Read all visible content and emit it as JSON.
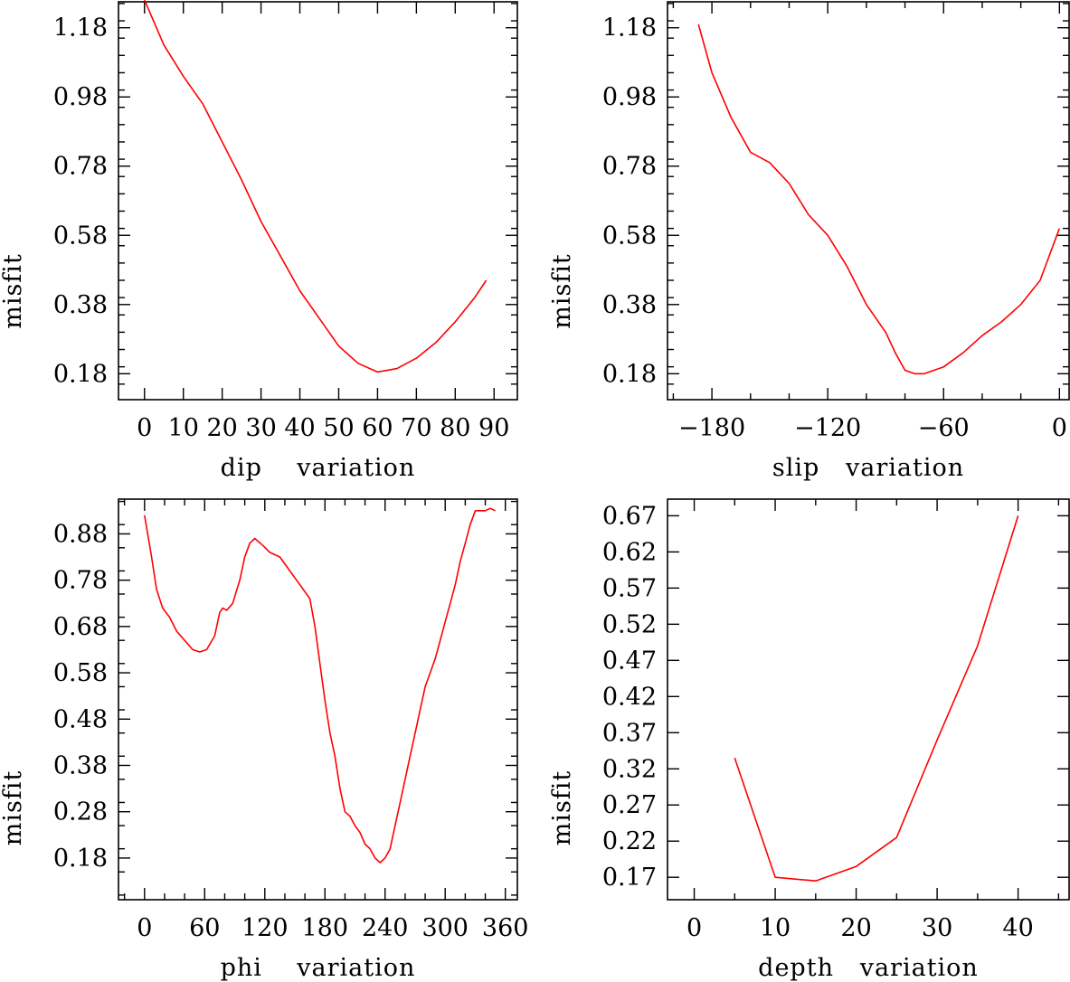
{
  "chart_data": [
    {
      "type": "line",
      "xlabel": "dip    variation",
      "ylabel": "misfit",
      "xlim": [
        -6.7,
        96
      ],
      "ylim": [
        0.105,
        1.255
      ],
      "xticks": [
        0,
        10,
        20,
        30,
        40,
        50,
        60,
        70,
        80,
        90
      ],
      "xtick_labels": [
        "0",
        "10",
        "20",
        "30",
        "40",
        "50",
        "60",
        "70",
        "80",
        "90"
      ],
      "yticks": [
        0.18,
        0.38,
        0.58,
        0.78,
        0.98,
        1.18
      ],
      "ytick_labels": [
        "0.18",
        "0.38",
        "0.58",
        "0.78",
        "0.98",
        "1.18"
      ],
      "yminor": 0.05,
      "series": [
        {
          "name": "misfit",
          "color": "#ff0000",
          "x": [
            0,
            5,
            10,
            15,
            20,
            25,
            30,
            35,
            40,
            45,
            50,
            55,
            60,
            65,
            70,
            75,
            80,
            85,
            88
          ],
          "y": [
            1.26,
            1.13,
            1.04,
            0.96,
            0.85,
            0.74,
            0.62,
            0.52,
            0.42,
            0.34,
            0.26,
            0.21,
            0.185,
            0.195,
            0.225,
            0.27,
            0.33,
            0.4,
            0.45
          ]
        }
      ]
    },
    {
      "type": "line",
      "xlabel": "slip   variation",
      "ylabel": "misfit",
      "xlim": [
        -203,
        5
      ],
      "ylim": [
        0.105,
        1.255
      ],
      "xticks": [
        -180,
        -120,
        -60,
        0
      ],
      "xtick_labels": [
        "−180",
        "−120",
        "−60",
        "0"
      ],
      "xminor": 20,
      "yticks": [
        0.18,
        0.38,
        0.58,
        0.78,
        0.98,
        1.18
      ],
      "ytick_labels": [
        "0.18",
        "0.38",
        "0.58",
        "0.78",
        "0.98",
        "1.18"
      ],
      "yminor": 0.05,
      "series": [
        {
          "name": "misfit",
          "color": "#ff0000",
          "x": [
            -187,
            -180,
            -170,
            -160,
            -150,
            -140,
            -130,
            -120,
            -110,
            -100,
            -90,
            -85,
            -80,
            -75,
            -70,
            -60,
            -50,
            -40,
            -30,
            -20,
            -10,
            0
          ],
          "y": [
            1.19,
            1.05,
            0.92,
            0.82,
            0.79,
            0.73,
            0.64,
            0.58,
            0.49,
            0.38,
            0.3,
            0.24,
            0.19,
            0.18,
            0.18,
            0.2,
            0.24,
            0.29,
            0.33,
            0.38,
            0.45,
            0.6
          ]
        }
      ]
    },
    {
      "type": "line",
      "xlabel": "phi    variation",
      "ylabel": "misfit",
      "xlim": [
        -26,
        372
      ],
      "ylim": [
        0.09,
        0.955
      ],
      "xticks": [
        0,
        60,
        120,
        180,
        240,
        300,
        360
      ],
      "xtick_labels": [
        "0",
        "60",
        "120",
        "180",
        "240",
        "300",
        "360"
      ],
      "xminor": 20,
      "yticks": [
        0.18,
        0.28,
        0.38,
        0.48,
        0.58,
        0.68,
        0.78,
        0.88
      ],
      "ytick_labels": [
        "0.18",
        "0.28",
        "0.38",
        "0.48",
        "0.58",
        "0.68",
        "0.78",
        "0.88"
      ],
      "yminor": 0.05,
      "series": [
        {
          "name": "misfit",
          "color": "#ff0000",
          "x": [
            0,
            7,
            12,
            18,
            25,
            32,
            40,
            48,
            55,
            62,
            70,
            75,
            78,
            82,
            88,
            95,
            100,
            105,
            110,
            118,
            125,
            135,
            145,
            155,
            165,
            170,
            175,
            180,
            185,
            190,
            195,
            200,
            205,
            210,
            215,
            220,
            225,
            230,
            235,
            240,
            245,
            250,
            255,
            260,
            265,
            270,
            275,
            280,
            285,
            290,
            295,
            300,
            305,
            310,
            315,
            320,
            325,
            330,
            335,
            340,
            345,
            350
          ],
          "y": [
            0.92,
            0.83,
            0.76,
            0.72,
            0.7,
            0.67,
            0.65,
            0.63,
            0.625,
            0.63,
            0.66,
            0.71,
            0.72,
            0.715,
            0.73,
            0.78,
            0.83,
            0.86,
            0.87,
            0.855,
            0.84,
            0.83,
            0.8,
            0.77,
            0.74,
            0.68,
            0.6,
            0.52,
            0.45,
            0.4,
            0.33,
            0.28,
            0.27,
            0.25,
            0.235,
            0.21,
            0.2,
            0.18,
            0.17,
            0.18,
            0.2,
            0.25,
            0.3,
            0.35,
            0.4,
            0.45,
            0.5,
            0.55,
            0.58,
            0.61,
            0.65,
            0.69,
            0.73,
            0.77,
            0.82,
            0.86,
            0.9,
            0.93,
            0.93,
            0.93,
            0.935,
            0.93
          ]
        }
      ]
    },
    {
      "type": "line",
      "xlabel": "depth   variation",
      "ylabel": "misfit",
      "xlim": [
        -3.3,
        46.3
      ],
      "ylim": [
        0.139,
        0.693
      ],
      "xticks": [
        0,
        10,
        20,
        30,
        40
      ],
      "xtick_labels": [
        "0",
        "10",
        "20",
        "30",
        "40"
      ],
      "xminor": 5,
      "yticks": [
        0.17,
        0.22,
        0.27,
        0.32,
        0.37,
        0.42,
        0.47,
        0.52,
        0.57,
        0.62,
        0.67
      ],
      "ytick_labels": [
        "0.17",
        "0.22",
        "0.27",
        "0.32",
        "0.37",
        "0.42",
        "0.47",
        "0.52",
        "0.57",
        "0.62",
        "0.67"
      ],
      "series": [
        {
          "name": "misfit",
          "color": "#ff0000",
          "x": [
            5,
            10,
            15,
            20,
            25,
            30,
            35,
            40
          ],
          "y": [
            0.335,
            0.17,
            0.165,
            0.185,
            0.225,
            0.36,
            0.49,
            0.67
          ]
        }
      ]
    }
  ]
}
